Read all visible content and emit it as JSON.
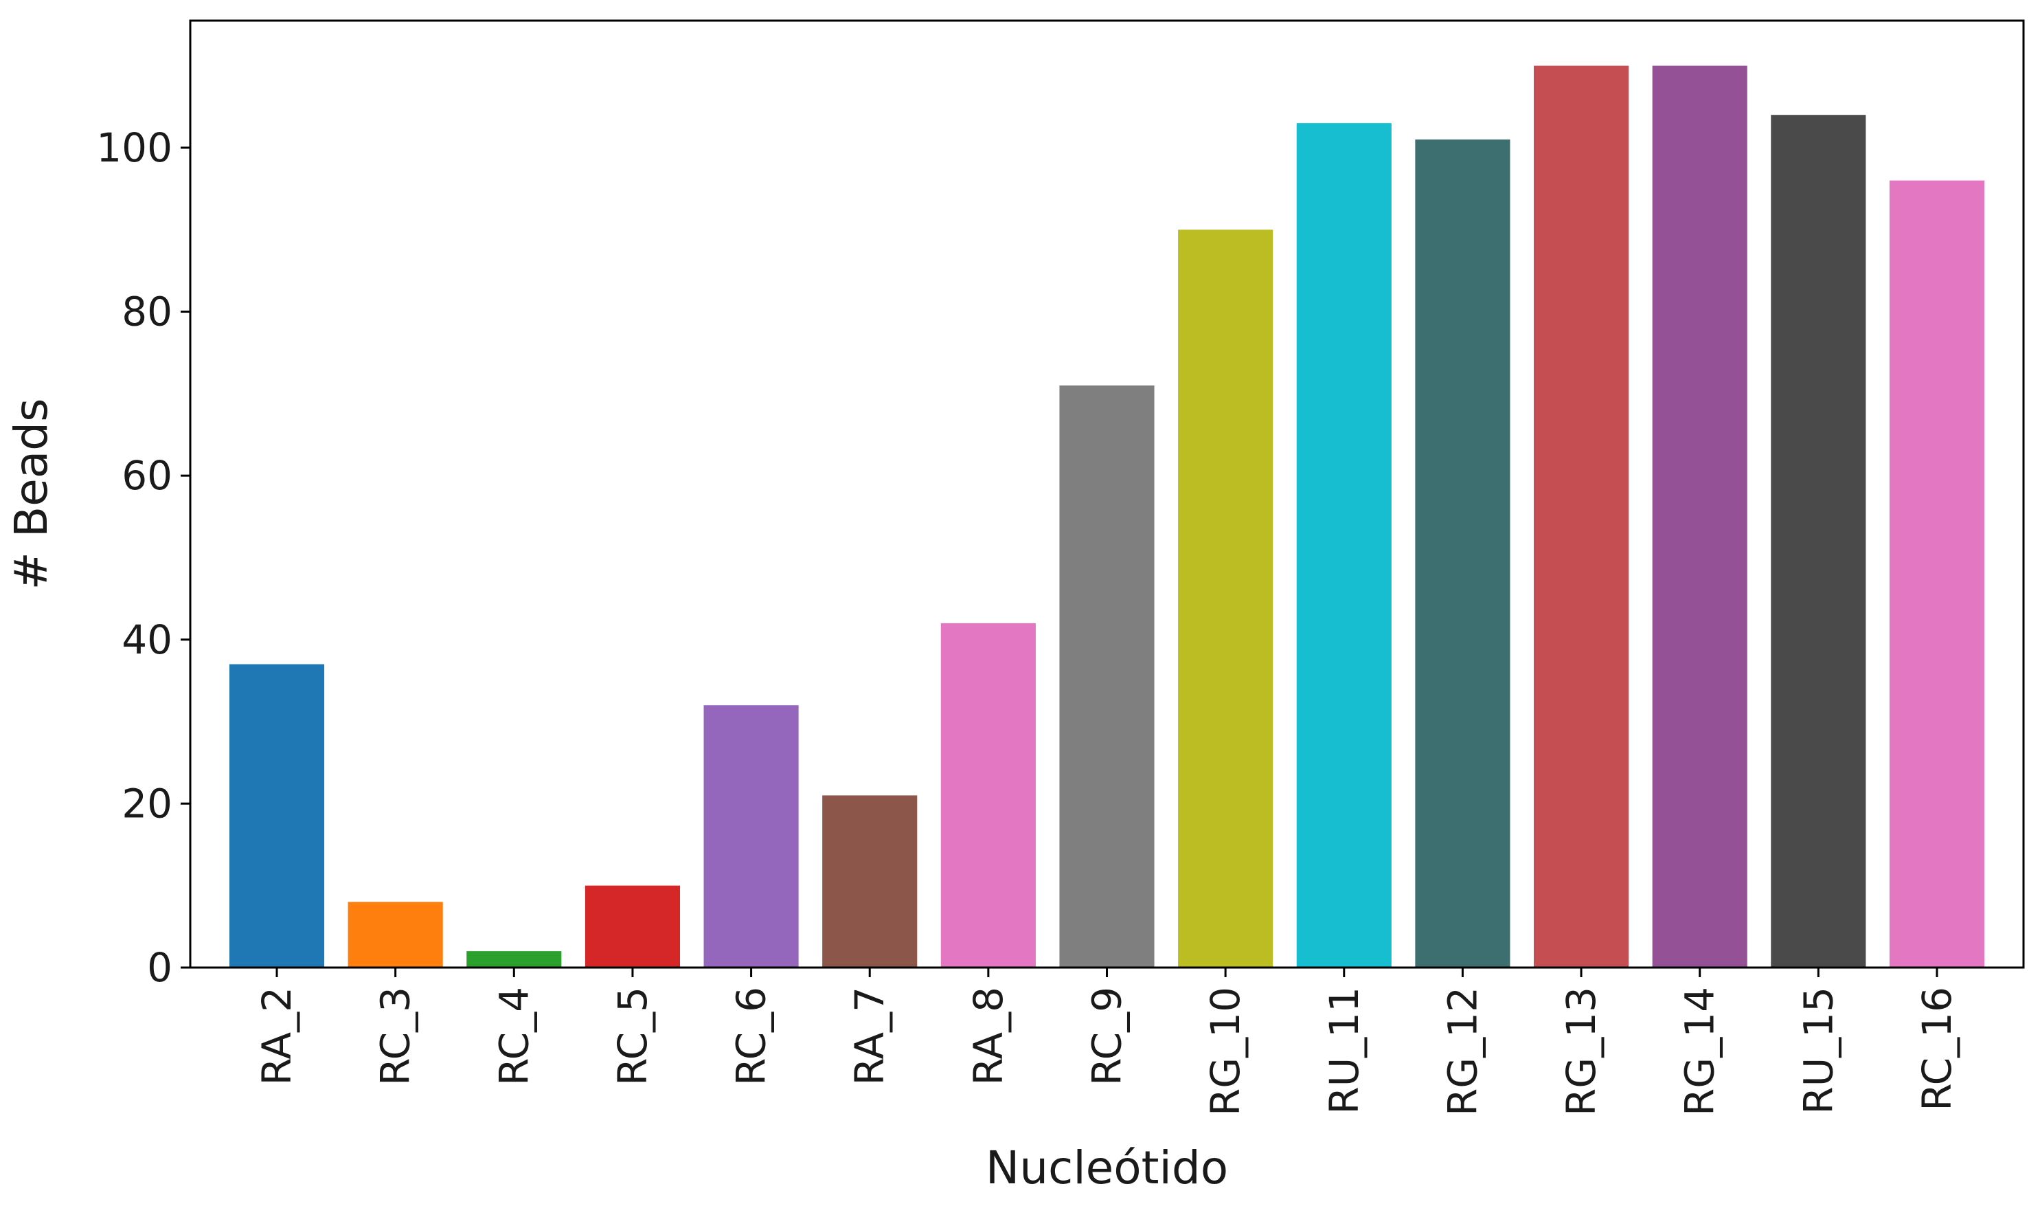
{
  "chart_data": {
    "type": "bar",
    "title": "",
    "xlabel": "Nucleótido",
    "ylabel": "# Beads",
    "categories": [
      "RA_2",
      "RC_3",
      "RC_4",
      "RC_5",
      "RC_6",
      "RA_7",
      "RA_8",
      "RC_9",
      "RG_10",
      "RU_11",
      "RG_12",
      "RG_13",
      "RG_14",
      "RU_15",
      "RC_16"
    ],
    "values": [
      37,
      8,
      2,
      10,
      32,
      21,
      42,
      71,
      90,
      103,
      101,
      110,
      110,
      104,
      96
    ],
    "colors": [
      "#1f77b4",
      "#ff7f0e",
      "#2ca02c",
      "#d62728",
      "#9467bd",
      "#8c564b",
      "#e377c2",
      "#7f7f7f",
      "#bcbd22",
      "#17becf",
      "#3d6e70",
      "#c44e52",
      "#955196",
      "#4a4a4a",
      "#e377c2"
    ],
    "ylim": [
      0,
      115.5
    ],
    "yticks": [
      0,
      20,
      40,
      60,
      80,
      100
    ],
    "grid": false,
    "legend": false
  }
}
